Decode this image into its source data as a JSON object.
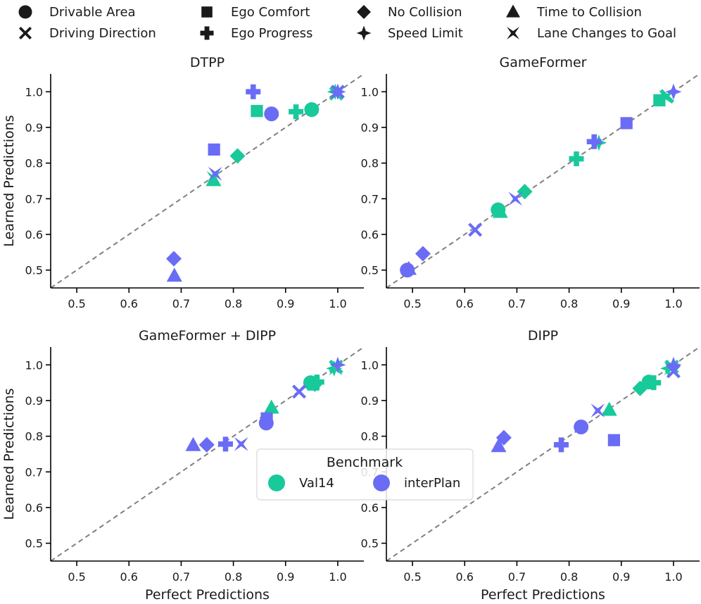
{
  "colors": {
    "val14": "#18c99a",
    "interplan": "#6a6cf6",
    "diagonal": "#808080",
    "axis": "#000000"
  },
  "metric_legend": [
    {
      "key": "drivable",
      "label": "Drivable Area",
      "marker": "circle"
    },
    {
      "key": "egocomfort",
      "label": "Ego Comfort",
      "marker": "square"
    },
    {
      "key": "nocollision",
      "label": "No Collision",
      "marker": "diamond"
    },
    {
      "key": "ttc",
      "label": "Time to Collision",
      "marker": "triangle"
    },
    {
      "key": "direction",
      "label": "Driving Direction",
      "marker": "x"
    },
    {
      "key": "progress",
      "label": "Ego Progress",
      "marker": "plus"
    },
    {
      "key": "speed",
      "label": "Speed Limit",
      "marker": "star4"
    },
    {
      "key": "lanechange",
      "label": "Lane Changes to Goal",
      "marker": "hourglass"
    }
  ],
  "benchmark_legend": {
    "title": "Benchmark",
    "items": [
      {
        "key": "val14",
        "label": "Val14"
      },
      {
        "key": "interplan",
        "label": "interPlan"
      }
    ]
  },
  "chart_data": [
    {
      "type": "scatter",
      "title": "DTPP",
      "xlabel": "",
      "ylabel": "Learned Predictions",
      "xlim": [
        0.45,
        1.05
      ],
      "ylim": [
        0.45,
        1.05
      ],
      "xticks": [
        "0.5",
        "0.6",
        "0.7",
        "0.8",
        "0.9",
        "1.0"
      ],
      "yticks": [
        "0.5",
        "0.6",
        "0.7",
        "0.8",
        "0.9",
        "1.0"
      ],
      "reference_line": "y = x",
      "series": [
        {
          "name": "Val14",
          "points": [
            {
              "metric": "drivable",
              "x": 0.95,
              "y": 0.95
            },
            {
              "metric": "egocomfort",
              "x": 0.845,
              "y": 0.946
            },
            {
              "metric": "nocollision",
              "x": 0.808,
              "y": 0.82
            },
            {
              "metric": "ttc",
              "x": 0.762,
              "y": 0.752
            },
            {
              "metric": "direction",
              "x": 0.997,
              "y": 0.995
            },
            {
              "metric": "progress",
              "x": 0.92,
              "y": 0.944
            },
            {
              "metric": "speed",
              "x": 0.995,
              "y": 1.0
            },
            {
              "metric": "lanechange",
              "x": 0.762,
              "y": 0.758
            }
          ]
        },
        {
          "name": "interPlan",
          "points": [
            {
              "metric": "drivable",
              "x": 0.873,
              "y": 0.938
            },
            {
              "metric": "egocomfort",
              "x": 0.763,
              "y": 0.838
            },
            {
              "metric": "nocollision",
              "x": 0.686,
              "y": 0.532
            },
            {
              "metric": "ttc",
              "x": 0.687,
              "y": 0.484
            },
            {
              "metric": "direction",
              "x": 1.0,
              "y": 1.0
            },
            {
              "metric": "progress",
              "x": 0.838,
              "y": 1.0
            },
            {
              "metric": "speed",
              "x": 1.0,
              "y": 1.0
            },
            {
              "metric": "lanechange",
              "x": 0.765,
              "y": 0.77
            }
          ]
        }
      ]
    },
    {
      "type": "scatter",
      "title": "GameFormer",
      "xlabel": "",
      "ylabel": "",
      "xlim": [
        0.45,
        1.05
      ],
      "ylim": [
        0.45,
        1.05
      ],
      "xticks": [
        "0.5",
        "0.6",
        "0.7",
        "0.8",
        "0.9",
        "1.0"
      ],
      "yticks": [
        "0.5",
        "0.6",
        "0.7",
        "0.8",
        "0.9",
        "1.0"
      ],
      "reference_line": "y = x",
      "series": [
        {
          "name": "Val14",
          "points": [
            {
              "metric": "drivable",
              "x": 0.664,
              "y": 0.669
            },
            {
              "metric": "egocomfort",
              "x": 0.973,
              "y": 0.976
            },
            {
              "metric": "nocollision",
              "x": 0.715,
              "y": 0.72
            },
            {
              "metric": "ttc",
              "x": 0.668,
              "y": 0.663
            },
            {
              "metric": "direction",
              "x": 0.988,
              "y": 0.988
            },
            {
              "metric": "progress",
              "x": 0.814,
              "y": 0.812
            },
            {
              "metric": "speed",
              "x": 0.857,
              "y": 0.857
            },
            {
              "metric": "lanechange",
              "x": 0.985,
              "y": 0.985
            }
          ]
        },
        {
          "name": "interPlan",
          "points": [
            {
              "metric": "drivable",
              "x": 0.49,
              "y": 0.5
            },
            {
              "metric": "egocomfort",
              "x": 0.91,
              "y": 0.912
            },
            {
              "metric": "nocollision",
              "x": 0.52,
              "y": 0.546
            },
            {
              "metric": "ttc",
              "x": 0.493,
              "y": 0.503
            },
            {
              "metric": "direction",
              "x": 0.62,
              "y": 0.613
            },
            {
              "metric": "progress",
              "x": 0.848,
              "y": 0.86
            },
            {
              "metric": "speed",
              "x": 1.0,
              "y": 1.0
            },
            {
              "metric": "lanechange",
              "x": 0.697,
              "y": 0.7
            }
          ]
        }
      ]
    },
    {
      "type": "scatter",
      "title": "GameFormer + DIPP",
      "xlabel": "Perfect Predictions",
      "ylabel": "Learned Predictions",
      "xlim": [
        0.45,
        1.05
      ],
      "ylim": [
        0.45,
        1.05
      ],
      "xticks": [
        "0.5",
        "0.6",
        "0.7",
        "0.8",
        "0.9",
        "1.0"
      ],
      "yticks": [
        "0.5",
        "0.6",
        "0.7",
        "0.8",
        "0.9",
        "1.0"
      ],
      "reference_line": "y = x",
      "series": [
        {
          "name": "Val14",
          "points": [
            {
              "metric": "drivable",
              "x": 0.948,
              "y": 0.95
            },
            {
              "metric": "egocomfort",
              "x": 0.953,
              "y": 0.945
            },
            {
              "metric": "nocollision",
              "x": 0.956,
              "y": 0.946
            },
            {
              "metric": "ttc",
              "x": 0.873,
              "y": 0.88
            },
            {
              "metric": "direction",
              "x": 0.997,
              "y": 0.995
            },
            {
              "metric": "progress",
              "x": 0.96,
              "y": 0.952
            },
            {
              "metric": "speed",
              "x": 0.993,
              "y": 0.99
            },
            {
              "metric": "lanechange",
              "x": 0.996,
              "y": 0.99
            }
          ]
        },
        {
          "name": "interPlan",
          "points": [
            {
              "metric": "drivable",
              "x": 0.863,
              "y": 0.837
            },
            {
              "metric": "egocomfort",
              "x": 0.864,
              "y": 0.85
            },
            {
              "metric": "nocollision",
              "x": 0.749,
              "y": 0.776
            },
            {
              "metric": "ttc",
              "x": 0.723,
              "y": 0.775
            },
            {
              "metric": "direction",
              "x": 0.926,
              "y": 0.925
            },
            {
              "metric": "progress",
              "x": 0.785,
              "y": 0.778
            },
            {
              "metric": "speed",
              "x": 1.0,
              "y": 1.0
            },
            {
              "metric": "lanechange",
              "x": 0.815,
              "y": 0.778
            }
          ]
        }
      ]
    },
    {
      "type": "scatter",
      "title": "DIPP",
      "xlabel": "Perfect Predictions",
      "ylabel": "",
      "xlim": [
        0.45,
        1.05
      ],
      "ylim": [
        0.45,
        1.05
      ],
      "xticks": [
        "0.5",
        "0.6",
        "0.7",
        "0.8",
        "0.9",
        "1.0"
      ],
      "yticks": [
        "0.5",
        "0.6",
        "0.7",
        "0.8",
        "0.9",
        "1.0"
      ],
      "reference_line": "y = x",
      "series": [
        {
          "name": "Val14",
          "points": [
            {
              "metric": "drivable",
              "x": 0.953,
              "y": 0.952
            },
            {
              "metric": "egocomfort",
              "x": 0.955,
              "y": 0.95
            },
            {
              "metric": "nocollision",
              "x": 0.936,
              "y": 0.934
            },
            {
              "metric": "ttc",
              "x": 0.877,
              "y": 0.874
            },
            {
              "metric": "direction",
              "x": 0.997,
              "y": 0.995
            },
            {
              "metric": "progress",
              "x": 0.962,
              "y": 0.95
            },
            {
              "metric": "speed",
              "x": 0.99,
              "y": 0.99
            },
            {
              "metric": "lanechange",
              "x": 0.995,
              "y": 0.99
            }
          ]
        },
        {
          "name": "interPlan",
          "points": [
            {
              "metric": "drivable",
              "x": 0.823,
              "y": 0.826
            },
            {
              "metric": "egocomfort",
              "x": 0.886,
              "y": 0.789
            },
            {
              "metric": "nocollision",
              "x": 0.675,
              "y": 0.796
            },
            {
              "metric": "ttc",
              "x": 0.665,
              "y": 0.772
            },
            {
              "metric": "direction",
              "x": 1.0,
              "y": 0.982
            },
            {
              "metric": "progress",
              "x": 0.785,
              "y": 0.776
            },
            {
              "metric": "speed",
              "x": 1.0,
              "y": 1.0
            },
            {
              "metric": "lanechange",
              "x": 0.855,
              "y": 0.872
            }
          ]
        }
      ]
    }
  ]
}
